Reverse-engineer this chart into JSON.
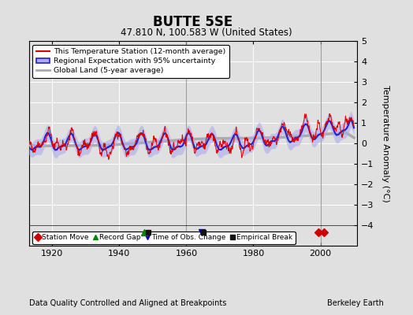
{
  "title": "BUTTE 5SE",
  "subtitle": "47.810 N, 100.583 W (United States)",
  "ylabel": "Temperature Anomaly (°C)",
  "xlabel_note": "Data Quality Controlled and Aligned at Breakpoints",
  "credit": "Berkeley Earth",
  "xlim": [
    1913,
    2011
  ],
  "ylim": [
    -5,
    5
  ],
  "yticks": [
    -4,
    -3,
    -2,
    -1,
    0,
    1,
    2,
    3,
    4,
    5
  ],
  "xticks": [
    1920,
    1940,
    1960,
    1980,
    2000
  ],
  "bg_color": "#e0e0e0",
  "grid_color": "#ffffff",
  "station_color": "#dd0000",
  "regional_color": "#2222cc",
  "regional_fill": "#aaaaee",
  "global_color": "#aaaaaa",
  "legend_items": [
    {
      "label": "This Temperature Station (12-month average)",
      "color": "#dd0000",
      "lw": 1.5
    },
    {
      "label": "Regional Expectation with 95% uncertainty",
      "color": "#2222cc",
      "fill": "#aaaaee"
    },
    {
      "label": "Global Land (5-year average)",
      "color": "#aaaaaa",
      "lw": 2
    }
  ],
  "marker_items": [
    {
      "label": "Station Move",
      "color": "#cc0000",
      "marker": "D"
    },
    {
      "label": "Record Gap",
      "color": "#008800",
      "marker": "^"
    },
    {
      "label": "Time of Obs. Change",
      "color": "#0000cc",
      "marker": "v"
    },
    {
      "label": "Empirical Break",
      "color": "#111111",
      "marker": "s"
    }
  ],
  "station_moves": [
    1999.5,
    2001.0
  ],
  "record_gaps": [
    1947.5
  ],
  "time_obs_changes": [
    1964.5
  ],
  "empirical_breaks": [
    1948.5,
    1965.0
  ],
  "vert_lines": [
    1960,
    2000
  ],
  "seed": 17,
  "start_year": 1913,
  "end_year": 2010
}
